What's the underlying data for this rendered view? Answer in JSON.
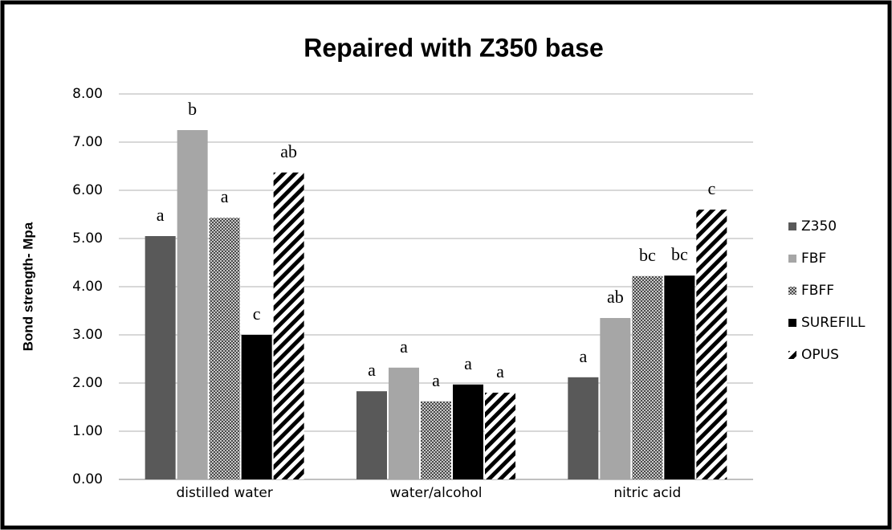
{
  "chart_data": {
    "type": "bar",
    "title": "Repaired with Z350 base",
    "y_label": "Bond strength- Mpa",
    "categories": [
      "distilled water",
      "water/alcohol",
      "nitric acid"
    ],
    "series": [
      {
        "name": "Z350",
        "color": "#595959",
        "pattern": "solid",
        "values": [
          5.05,
          1.83,
          2.12
        ],
        "group_letters": [
          "a",
          "a",
          "a"
        ]
      },
      {
        "name": "FBF",
        "color": "#a6a6a6",
        "pattern": "solid",
        "values": [
          7.25,
          2.32,
          3.35
        ],
        "group_letters": [
          "b",
          "a",
          "ab"
        ]
      },
      {
        "name": "FBFF",
        "color": "#595959",
        "pattern": "checker",
        "values": [
          5.43,
          1.62,
          4.22
        ],
        "group_letters": [
          "a",
          "a",
          "bc"
        ]
      },
      {
        "name": "SUREFILL",
        "color": "#000000",
        "pattern": "solid",
        "values": [
          3.0,
          1.97,
          4.23
        ],
        "group_letters": [
          "c",
          "a",
          "bc"
        ]
      },
      {
        "name": "OPUS",
        "color": "#000000",
        "pattern": "diagonal",
        "values": [
          6.37,
          1.8,
          5.6
        ],
        "group_letters": [
          "ab",
          "a",
          "c"
        ]
      }
    ],
    "ylim": [
      0,
      8
    ],
    "yticks": [
      {
        "value": 0,
        "label": "0.00"
      },
      {
        "value": 1,
        "label": "1.00"
      },
      {
        "value": 2,
        "label": "2.00"
      },
      {
        "value": 3,
        "label": "3.00"
      },
      {
        "value": 4,
        "label": "4.00"
      },
      {
        "value": 5,
        "label": "5.00"
      },
      {
        "value": 6,
        "label": "6.00"
      },
      {
        "value": 7,
        "label": "7.00"
      },
      {
        "value": 8,
        "label": "8.00"
      }
    ],
    "grid": true,
    "legend": "right"
  }
}
